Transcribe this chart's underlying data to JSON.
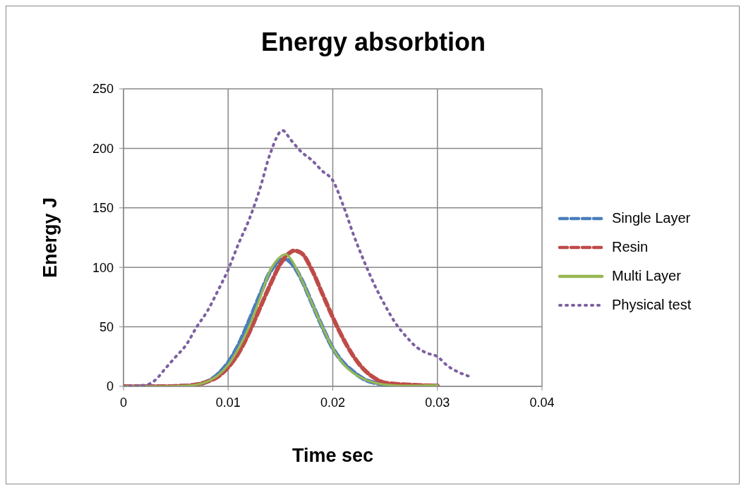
{
  "chart_data": {
    "type": "line",
    "title": "Energy absorbtion",
    "xlabel": "Time sec",
    "ylabel": "Energy J",
    "xlim": [
      0,
      0.04
    ],
    "xticks": [
      0,
      0.01,
      0.02,
      0.03,
      0.04
    ],
    "ylim": [
      0,
      250
    ],
    "yticks": [
      0,
      50,
      100,
      150,
      200,
      250
    ],
    "grid": true,
    "legend": "right",
    "marker": "none",
    "series": [
      {
        "name": "Single Layer",
        "color": "#4a7ebb",
        "line_style": "dashed",
        "x": [
          0,
          0.002,
          0.004,
          0.006,
          0.007,
          0.008,
          0.009,
          0.01,
          0.011,
          0.012,
          0.013,
          0.014,
          0.015,
          0.0155,
          0.016,
          0.017,
          0.018,
          0.019,
          0.02,
          0.021,
          0.022,
          0.023,
          0.024,
          0.026,
          0.03
        ],
        "values": [
          0,
          0,
          0,
          0.5,
          1.5,
          4,
          10,
          20,
          35,
          55,
          76,
          96,
          106,
          107,
          104,
          90,
          70,
          50,
          32,
          20,
          12,
          6,
          3,
          1,
          0.5
        ]
      },
      {
        "name": "Resin",
        "color": "#be4b48",
        "line_style": "dashed",
        "x": [
          0,
          0.002,
          0.004,
          0.006,
          0.007,
          0.008,
          0.009,
          0.01,
          0.011,
          0.012,
          0.013,
          0.014,
          0.015,
          0.016,
          0.0163,
          0.017,
          0.018,
          0.019,
          0.02,
          0.021,
          0.022,
          0.023,
          0.024,
          0.025,
          0.027,
          0.03
        ],
        "values": [
          0,
          0,
          0,
          0.5,
          1.5,
          4,
          8,
          16,
          28,
          45,
          65,
          85,
          103,
          113,
          114,
          112,
          98,
          78,
          58,
          40,
          25,
          14,
          7,
          3,
          1.5,
          0.5
        ]
      },
      {
        "name": "Multi Layer",
        "color": "#98b954",
        "line_style": "solid",
        "x": [
          0,
          0.002,
          0.004,
          0.006,
          0.007,
          0.008,
          0.009,
          0.01,
          0.011,
          0.012,
          0.013,
          0.014,
          0.015,
          0.0155,
          0.016,
          0.017,
          0.018,
          0.019,
          0.02,
          0.021,
          0.022,
          0.023,
          0.024,
          0.025,
          0.027,
          0.03
        ],
        "values": [
          0,
          0,
          0,
          0.5,
          1.5,
          4,
          9,
          18,
          32,
          50,
          73,
          97,
          109,
          111,
          107,
          90,
          70,
          50,
          32,
          19,
          11,
          6,
          3,
          1.5,
          0.5,
          1
        ]
      },
      {
        "name": "Physical test",
        "color": "#7d60a0",
        "line_style": "dotted",
        "x": [
          0,
          0.002,
          0.003,
          0.004,
          0.005,
          0.006,
          0.007,
          0.008,
          0.009,
          0.01,
          0.011,
          0.012,
          0.013,
          0.014,
          0.0152,
          0.016,
          0.017,
          0.018,
          0.019,
          0.02,
          0.021,
          0.022,
          0.023,
          0.024,
          0.025,
          0.026,
          0.027,
          0.028,
          0.029,
          0.03,
          0.031,
          0.032,
          0.0332
        ],
        "values": [
          0,
          1,
          5,
          15,
          25,
          35,
          50,
          63,
          80,
          98,
          120,
          140,
          165,
          195,
          215,
          207,
          197,
          190,
          181,
          173,
          152,
          127,
          105,
          85,
          68,
          53,
          42,
          33,
          28,
          25,
          17,
          12,
          8
        ]
      }
    ]
  }
}
